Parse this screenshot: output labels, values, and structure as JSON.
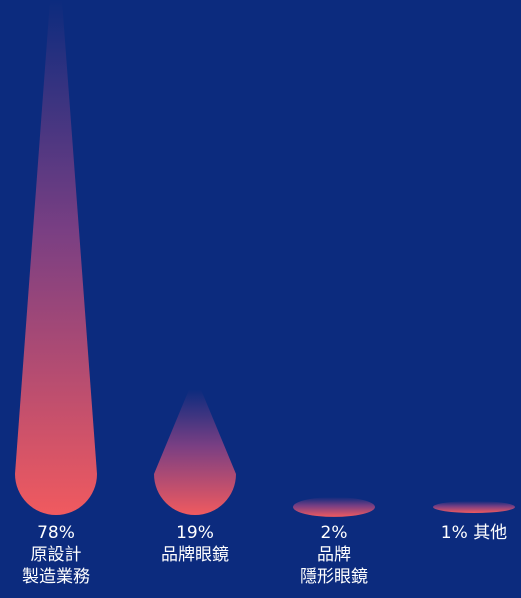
{
  "chart_data": {
    "type": "bar",
    "categories": [
      {
        "value_label": "78%",
        "name_lines": [
          "原設計",
          "製造業務"
        ]
      },
      {
        "value_label": "19%",
        "name_lines": [
          "品牌眼鏡"
        ]
      },
      {
        "value_label": "2%",
        "name_lines": [
          "品牌",
          "隱形眼鏡"
        ]
      },
      {
        "value_label": "1%",
        "name_lines": [
          "其他"
        ]
      }
    ],
    "values": [
      78,
      19,
      2,
      1
    ],
    "unit": "%",
    "colors": {
      "background": "#0c2b7e",
      "bar_top": "#0c2b7e",
      "bar_mid": "#7a3f83",
      "bar_bottom": "#f05a5f",
      "label": "#ffffff"
    }
  }
}
